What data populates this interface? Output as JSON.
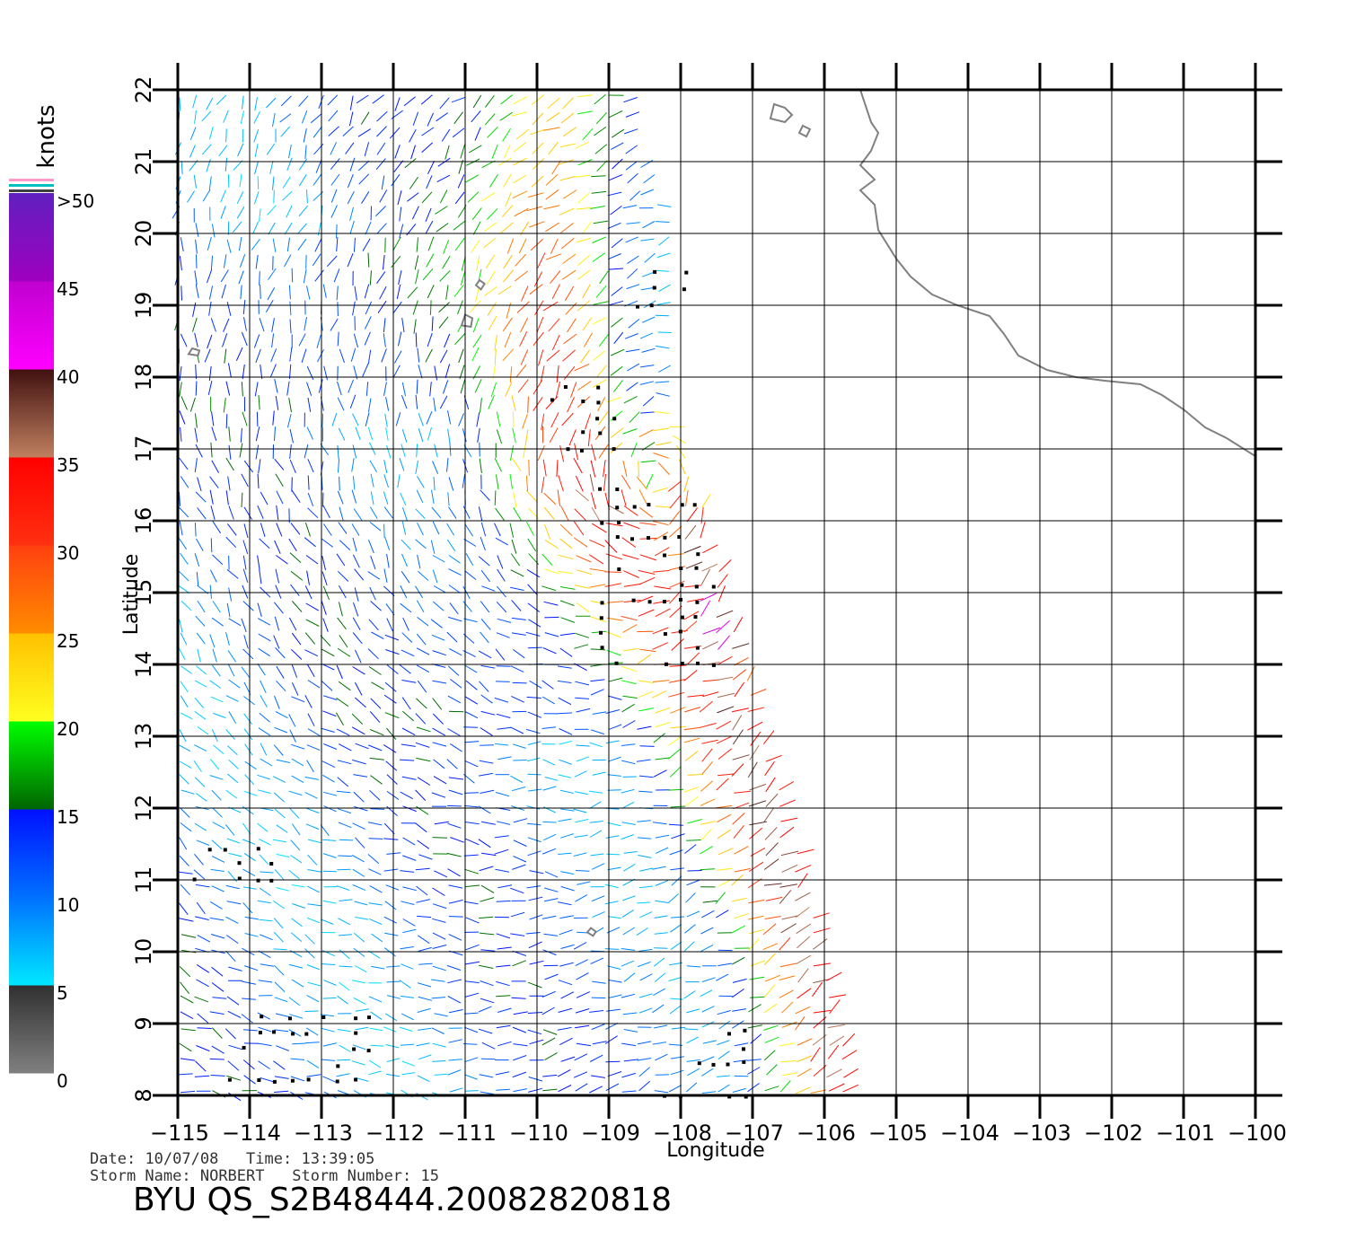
{
  "map": {
    "x_axis": {
      "title": "Longitude",
      "range": [
        -115,
        -100
      ],
      "ticks": [
        {
          "value": -115,
          "label": "−115"
        },
        {
          "value": -114,
          "label": "−114"
        },
        {
          "value": -113,
          "label": "−113"
        },
        {
          "value": -112,
          "label": "−112"
        },
        {
          "value": -111,
          "label": "−111"
        },
        {
          "value": -110,
          "label": "−110"
        },
        {
          "value": -109,
          "label": "−109"
        },
        {
          "value": -108,
          "label": "−108"
        },
        {
          "value": -107,
          "label": "−107"
        },
        {
          "value": -106,
          "label": "−106"
        },
        {
          "value": -105,
          "label": "−105"
        },
        {
          "value": -104,
          "label": "−104"
        },
        {
          "value": -103,
          "label": "−103"
        },
        {
          "value": -102,
          "label": "−102"
        },
        {
          "value": -101,
          "label": "−101"
        },
        {
          "value": -100,
          "label": "−100"
        }
      ]
    },
    "y_axis": {
      "title": "Latitude",
      "range": [
        8,
        22
      ],
      "ticks": [
        {
          "value": 8,
          "label": "8"
        },
        {
          "value": 9,
          "label": "9"
        },
        {
          "value": 10,
          "label": "10"
        },
        {
          "value": 11,
          "label": "11"
        },
        {
          "value": 12,
          "label": "12"
        },
        {
          "value": 13,
          "label": "13"
        },
        {
          "value": 14,
          "label": "14"
        },
        {
          "value": 15,
          "label": "15"
        },
        {
          "value": 16,
          "label": "16"
        },
        {
          "value": 17,
          "label": "17"
        },
        {
          "value": 18,
          "label": "18"
        },
        {
          "value": 19,
          "label": "19"
        },
        {
          "value": 20,
          "label": "20"
        },
        {
          "value": 21,
          "label": "21"
        },
        {
          "value": 22,
          "label": "22"
        }
      ]
    },
    "grid": true,
    "coastline_color": "#808080",
    "coastline": [
      [
        -105.5,
        22.0
      ],
      [
        -105.35,
        21.55
      ],
      [
        -105.25,
        21.4
      ],
      [
        -105.35,
        21.15
      ],
      [
        -105.5,
        20.95
      ],
      [
        -105.3,
        20.75
      ],
      [
        -105.5,
        20.6
      ],
      [
        -105.3,
        20.4
      ],
      [
        -105.25,
        20.05
      ],
      [
        -105.0,
        19.65
      ],
      [
        -104.8,
        19.4
      ],
      [
        -104.5,
        19.15
      ],
      [
        -104.15,
        19.0
      ],
      [
        -103.7,
        18.85
      ],
      [
        -103.5,
        18.6
      ],
      [
        -103.3,
        18.3
      ],
      [
        -102.9,
        18.1
      ],
      [
        -102.5,
        18.0
      ],
      [
        -102.1,
        17.95
      ],
      [
        -101.6,
        17.9
      ],
      [
        -101.3,
        17.75
      ],
      [
        -101.0,
        17.55
      ],
      [
        -100.7,
        17.3
      ],
      [
        -100.4,
        17.15
      ],
      [
        -100.0,
        16.9
      ]
    ],
    "islands": [
      {
        "name": "Islas Marias",
        "outline": [
          [
            -106.7,
            21.8
          ],
          [
            -106.55,
            21.75
          ],
          [
            -106.45,
            21.65
          ],
          [
            -106.55,
            21.55
          ],
          [
            -106.75,
            21.6
          ],
          [
            -106.7,
            21.8
          ]
        ]
      },
      {
        "name": "Isla San Juanito",
        "outline": [
          [
            -106.3,
            21.5
          ],
          [
            -106.2,
            21.45
          ],
          [
            -106.25,
            21.35
          ],
          [
            -106.35,
            21.4
          ],
          [
            -106.3,
            21.5
          ]
        ]
      },
      {
        "name": "Isla Socorro",
        "outline": [
          [
            -111.0,
            18.87
          ],
          [
            -110.9,
            18.82
          ],
          [
            -110.92,
            18.7
          ],
          [
            -111.05,
            18.72
          ],
          [
            -111.0,
            18.87
          ]
        ]
      },
      {
        "name": "Isla San Benedicto",
        "outline": [
          [
            -110.8,
            19.35
          ],
          [
            -110.73,
            19.3
          ],
          [
            -110.78,
            19.22
          ],
          [
            -110.85,
            19.28
          ],
          [
            -110.8,
            19.35
          ]
        ]
      },
      {
        "name": "Isla Clarion",
        "outline": [
          [
            -114.8,
            18.4
          ],
          [
            -114.7,
            18.37
          ],
          [
            -114.72,
            18.3
          ],
          [
            -114.85,
            18.32
          ],
          [
            -114.8,
            18.4
          ]
        ]
      },
      {
        "name": "Clipperton",
        "outline": [
          [
            -109.25,
            10.33
          ],
          [
            -109.18,
            10.28
          ],
          [
            -109.22,
            10.22
          ],
          [
            -109.3,
            10.27
          ],
          [
            -109.25,
            10.33
          ]
        ]
      }
    ],
    "swath": {
      "left_edge_lon": -115.0,
      "right_edge": [
        [
          -105.5,
          8.0
        ],
        [
          -106.4,
          11.5
        ],
        [
          -107.4,
          15.0
        ],
        [
          -107.95,
          17.5
        ],
        [
          -108.0,
          20.0
        ],
        [
          -108.6,
          22.0
        ]
      ],
      "wind_vectors": {
        "units": "knots",
        "grid_step_deg": 0.22,
        "note_style": "direction as short line segment colored by speed, black squares mark rain-flagged cells",
        "high_wind_band": [
          [
            -109.7,
            18.0
          ],
          [
            -109.3,
            16.8
          ],
          [
            -108.8,
            15.5
          ],
          [
            -108.1,
            14.2
          ],
          [
            -107.5,
            13.0
          ],
          [
            -107.0,
            11.5
          ],
          [
            -106.5,
            10.0
          ],
          [
            -106.1,
            8.5
          ]
        ],
        "rain_flag_clusters": [
          {
            "lon_range": [
              -109.8,
              -108.9
            ],
            "lat_range": [
              17.0,
              18.0
            ]
          },
          {
            "lon_range": [
              -108.6,
              -107.9
            ],
            "lat_range": [
              19.0,
              19.5
            ]
          },
          {
            "lon_range": [
              -109.1,
              -107.5
            ],
            "lat_range": [
              14.0,
              16.5
            ]
          },
          {
            "lon_range": [
              -108.2,
              -107.0
            ],
            "lat_range": [
              8.0,
              9.0
            ]
          },
          {
            "lon_range": [
              -114.3,
              -112.3
            ],
            "lat_range": [
              8.2,
              9.3
            ]
          },
          {
            "lon_range": [
              -115.0,
              -113.5
            ],
            "lat_range": [
              11.0,
              11.5
            ]
          }
        ]
      }
    }
  },
  "colorbar": {
    "unit_label": "knots",
    "min": 0,
    "max": 50,
    "labels": [
      {
        "value": 0,
        "label": "0"
      },
      {
        "value": 5,
        "label": "5"
      },
      {
        "value": 10,
        "label": "10"
      },
      {
        "value": 15,
        "label": "15"
      },
      {
        "value": 20,
        "label": "20"
      },
      {
        "value": 25,
        "label": "25"
      },
      {
        "value": 30,
        "label": "30"
      },
      {
        "value": 35,
        "label": "35"
      },
      {
        "value": 40,
        "label": "40"
      },
      {
        "value": 45,
        "label": "45"
      },
      {
        "value": 50,
        "label": ">50"
      }
    ],
    "segments": [
      {
        "from": 0,
        "to": 5,
        "colors": [
          "#808080",
          "#303030"
        ]
      },
      {
        "from": 5,
        "to": 10,
        "colors": [
          "#00e8ff",
          "#0070ff"
        ]
      },
      {
        "from": 10,
        "to": 15,
        "colors": [
          "#0070ff",
          "#0010ff"
        ]
      },
      {
        "from": 15,
        "to": 20,
        "colors": [
          "#006400",
          "#00ff00"
        ]
      },
      {
        "from": 20,
        "to": 25,
        "colors": [
          "#ffff20",
          "#ffc000"
        ]
      },
      {
        "from": 25,
        "to": 30,
        "colors": [
          "#ff8c00",
          "#ff4010"
        ]
      },
      {
        "from": 30,
        "to": 35,
        "colors": [
          "#ff3010",
          "#ff0000"
        ]
      },
      {
        "from": 35,
        "to": 40,
        "colors": [
          "#c08060",
          "#401010"
        ]
      },
      {
        "from": 40,
        "to": 45,
        "colors": [
          "#ff00ff",
          "#c000d0"
        ]
      },
      {
        "from": 45,
        "to": 50,
        "colors": [
          "#a000c0",
          "#6020c0"
        ]
      }
    ],
    "top_stripes": [
      "#ff99cc",
      "#ffffff",
      "#00c0c0",
      "#ffffff",
      "#404040"
    ]
  },
  "footer": {
    "date_label": "Date:",
    "date": "10/07/08",
    "time_label": "Time:",
    "time": "13:39:05",
    "storm_name_label": "Storm Name:",
    "storm_name": "NORBERT",
    "storm_number_label": "Storm Number:",
    "storm_number": "15",
    "product": "BYU QS_S2B48444.20082820818"
  }
}
